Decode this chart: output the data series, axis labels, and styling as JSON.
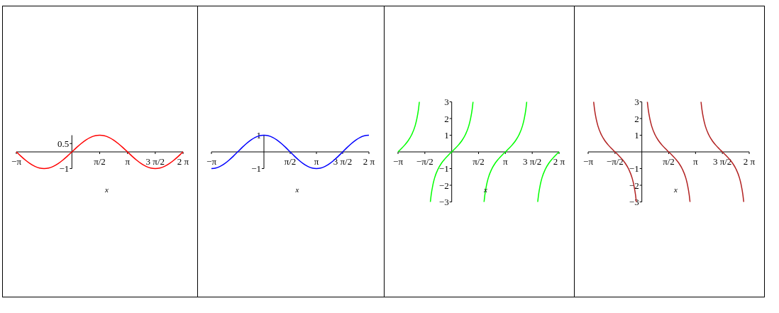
{
  "chart_data": [
    {
      "type": "line",
      "xlabel": "x",
      "xlim": [
        -3.142,
        6.283
      ],
      "ylim": [
        -1,
        1
      ],
      "xticks": [
        {
          "value": -3.142,
          "label": "−π"
        },
        {
          "value": 1.571,
          "label": "π/2"
        },
        {
          "value": 3.142,
          "label": "π"
        },
        {
          "value": 4.712,
          "label": "3 π/2"
        },
        {
          "value": 6.283,
          "label": "2 π"
        }
      ],
      "yticks": [
        0.5,
        -1
      ],
      "grid": false,
      "x": [
        -3.142,
        -2.88,
        -2.618,
        -2.356,
        -2.094,
        -1.833,
        -1.571,
        -1.309,
        -1.047,
        -0.785,
        -0.524,
        -0.262,
        0,
        0.262,
        0.524,
        0.785,
        1.047,
        1.309,
        1.571,
        1.833,
        2.094,
        2.356,
        2.618,
        2.88,
        3.142,
        3.403,
        3.665,
        3.927,
        4.189,
        4.451,
        4.712,
        4.974,
        5.236,
        5.498,
        5.76,
        6.021,
        6.283
      ],
      "series": [
        {
          "color": "#ff0000",
          "values": [
            0,
            -0.26,
            -0.5,
            -0.71,
            -0.87,
            -0.97,
            -1,
            -0.97,
            -0.87,
            -0.71,
            -0.5,
            -0.26,
            0,
            0.26,
            0.5,
            0.71,
            0.87,
            0.97,
            1,
            0.97,
            0.87,
            0.71,
            0.5,
            0.26,
            0,
            -0.26,
            -0.5,
            -0.71,
            -0.87,
            -0.97,
            -1,
            -0.97,
            -0.87,
            -0.71,
            -0.5,
            -0.26,
            0
          ]
        }
      ]
    },
    {
      "type": "line",
      "xlabel": "x",
      "xlim": [
        -3.142,
        6.283
      ],
      "ylim": [
        -1,
        1
      ],
      "xticks": [
        {
          "value": -3.142,
          "label": "−π"
        },
        {
          "value": 1.571,
          "label": "π/2"
        },
        {
          "value": 3.142,
          "label": "π"
        },
        {
          "value": 4.712,
          "label": "3 π/2"
        },
        {
          "value": 6.283,
          "label": "2 π"
        }
      ],
      "yticks": [
        1,
        -1
      ],
      "grid": false,
      "x": [
        -3.142,
        -2.88,
        -2.618,
        -2.356,
        -2.094,
        -1.833,
        -1.571,
        -1.309,
        -1.047,
        -0.785,
        -0.524,
        -0.262,
        0,
        0.262,
        0.524,
        0.785,
        1.047,
        1.309,
        1.571,
        1.833,
        2.094,
        2.356,
        2.618,
        2.88,
        3.142,
        3.403,
        3.665,
        3.927,
        4.189,
        4.451,
        4.712,
        4.974,
        5.236,
        5.498,
        5.76,
        6.021,
        6.283
      ],
      "series": [
        {
          "color": "#0000ff",
          "values": [
            -1,
            -0.97,
            -0.87,
            -0.71,
            -0.5,
            -0.26,
            0,
            0.26,
            0.5,
            0.71,
            0.87,
            0.97,
            1,
            0.97,
            0.87,
            0.71,
            0.5,
            0.26,
            0,
            -0.26,
            -0.5,
            -0.71,
            -0.87,
            -0.97,
            -1,
            -0.97,
            -0.87,
            -0.71,
            -0.5,
            -0.26,
            0,
            0.26,
            0.5,
            0.71,
            0.87,
            0.97,
            1
          ]
        }
      ]
    },
    {
      "type": "line",
      "xlabel": "x",
      "xlim": [
        -3.142,
        6.283
      ],
      "ylim": [
        -3,
        3
      ],
      "xticks": [
        {
          "value": -3.142,
          "label": "−π"
        },
        {
          "value": -1.571,
          "label": "−π/2"
        },
        {
          "value": 1.571,
          "label": "π/2"
        },
        {
          "value": 3.142,
          "label": "π"
        },
        {
          "value": 4.712,
          "label": "3 π/2"
        },
        {
          "value": 6.283,
          "label": "2 π"
        }
      ],
      "yticks": [
        3,
        2,
        1,
        -1,
        -2,
        -3
      ],
      "grid": false,
      "series": [
        {
          "color": "#00ff00",
          "x": [
            -3.142,
            -2.942,
            -2.742,
            -2.542,
            -2.342,
            -2.142,
            -2.042,
            -1.942,
            -1.893
          ],
          "values": [
            0,
            0.2,
            0.42,
            0.68,
            1.03,
            1.56,
            1.97,
            2.57,
            3
          ]
        },
        {
          "color": "#00ff00",
          "x": [
            -1.249,
            -1.2,
            -1.1,
            -1.0,
            -0.8,
            -0.6,
            -0.4,
            -0.2,
            0,
            0.2,
            0.4,
            0.6,
            0.8,
            1.0,
            1.1,
            1.2,
            1.249
          ],
          "values": [
            -3,
            -2.57,
            -1.97,
            -1.56,
            -1.03,
            -0.68,
            -0.42,
            -0.2,
            0,
            0.2,
            0.42,
            0.68,
            1.03,
            1.56,
            1.97,
            2.57,
            3
          ]
        },
        {
          "color": "#00ff00",
          "x": [
            1.893,
            1.942,
            2.042,
            2.142,
            2.342,
            2.542,
            2.742,
            2.942,
            3.142,
            3.342,
            3.542,
            3.742,
            3.942,
            4.142,
            4.242,
            4.342,
            4.391
          ],
          "values": [
            -3,
            -2.57,
            -1.97,
            -1.56,
            -1.03,
            -0.68,
            -0.42,
            -0.2,
            0,
            0.2,
            0.42,
            0.68,
            1.03,
            1.56,
            1.97,
            2.57,
            3
          ]
        },
        {
          "color": "#00ff00",
          "x": [
            5.034,
            5.083,
            5.183,
            5.283,
            5.483,
            5.683,
            5.883,
            6.083,
            6.283
          ],
          "values": [
            -3,
            -2.57,
            -1.97,
            -1.56,
            -1.03,
            -0.68,
            -0.42,
            -0.2,
            0
          ]
        }
      ]
    },
    {
      "type": "line",
      "xlabel": "x",
      "xlim": [
        -3.142,
        6.283
      ],
      "ylim": [
        -3,
        3
      ],
      "xticks": [
        {
          "value": -3.142,
          "label": "−π"
        },
        {
          "value": -1.571,
          "label": "−π/2"
        },
        {
          "value": 1.571,
          "label": "π/2"
        },
        {
          "value": 3.142,
          "label": "π"
        },
        {
          "value": 4.712,
          "label": "3 π/2"
        },
        {
          "value": 6.283,
          "label": "2 π"
        }
      ],
      "yticks": [
        3,
        2,
        1,
        -1,
        -2,
        -3
      ],
      "grid": false,
      "series": [
        {
          "color": "#b22222",
          "x": [
            -2.82,
            -2.771,
            -2.671,
            -2.571,
            -2.371,
            -2.171,
            -1.971,
            -1.771,
            -1.571,
            -1.371,
            -1.171,
            -0.971,
            -0.771,
            -0.571,
            -0.471,
            -0.371,
            -0.322
          ],
          "values": [
            3,
            2.57,
            1.97,
            1.56,
            1.03,
            0.68,
            0.42,
            0.2,
            0,
            -0.2,
            -0.42,
            -0.68,
            -1.03,
            -1.56,
            -1.97,
            -2.57,
            -3
          ]
        },
        {
          "color": "#b22222",
          "x": [
            0.322,
            0.371,
            0.471,
            0.571,
            0.771,
            0.971,
            1.171,
            1.371,
            1.571,
            1.771,
            1.971,
            2.171,
            2.371,
            2.571,
            2.671,
            2.771,
            2.82
          ],
          "values": [
            3,
            2.57,
            1.97,
            1.56,
            1.03,
            0.68,
            0.42,
            0.2,
            0,
            -0.2,
            -0.42,
            -0.68,
            -1.03,
            -1.56,
            -1.97,
            -2.57,
            -3
          ]
        },
        {
          "color": "#b22222",
          "x": [
            3.464,
            3.513,
            3.613,
            3.713,
            3.913,
            4.113,
            4.313,
            4.513,
            4.712,
            4.913,
            5.113,
            5.313,
            5.513,
            5.713,
            5.813,
            5.913,
            5.962
          ],
          "values": [
            3,
            2.57,
            1.97,
            1.56,
            1.03,
            0.68,
            0.42,
            0.2,
            0,
            -0.2,
            -0.42,
            -0.68,
            -1.03,
            -1.56,
            -1.97,
            -2.57,
            -3
          ]
        }
      ]
    }
  ]
}
